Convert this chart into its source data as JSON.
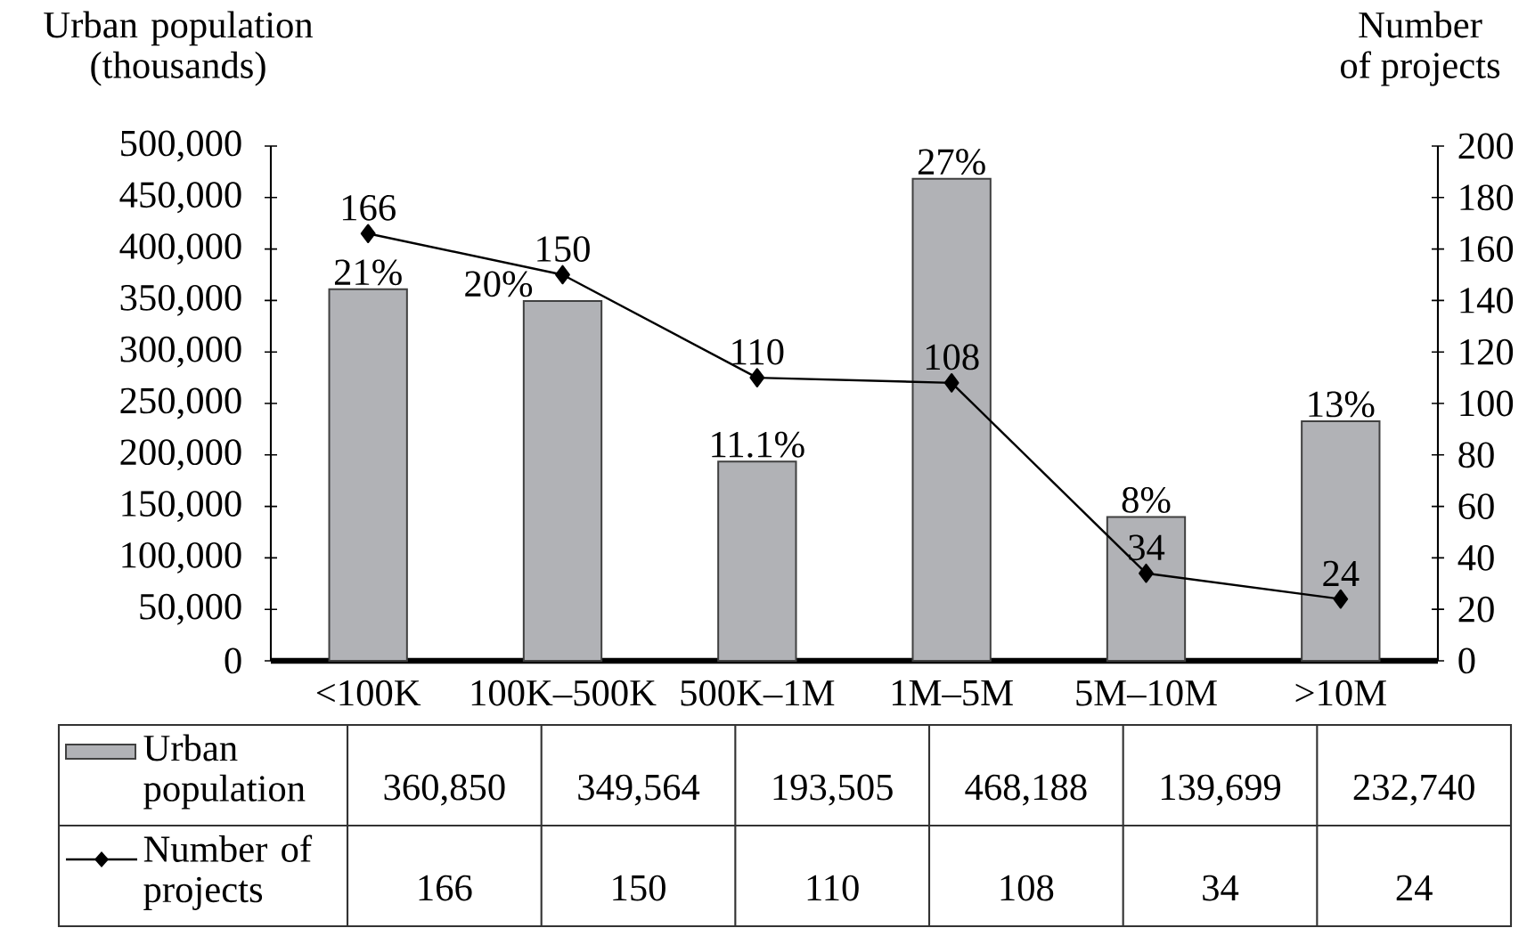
{
  "chart_data": {
    "type": "bar",
    "ylabel": "Urban population (thousands)",
    "y2label": "Number of projects",
    "categories": [
      "<100K",
      "100K–500K",
      "500K–1M",
      "1M–5M",
      "5M–10M",
      ">10M"
    ],
    "series": [
      {
        "name": "Urban population",
        "color": "#b1b2b6",
        "values": [
          360850,
          349564,
          193505,
          468188,
          139699,
          232740
        ],
        "value_labels": [
          "360,850",
          "349,564",
          "193,505",
          "468,188",
          "139,699",
          "232,740"
        ]
      },
      {
        "name": "Number of projects",
        "type": "line",
        "axis": "y2",
        "color": "#000000",
        "marker": "diamond",
        "data_labels": true,
        "values": [
          166,
          150,
          110,
          108,
          34,
          24
        ],
        "value_labels": [
          "166",
          "150",
          "110",
          "108",
          "34",
          "24"
        ]
      }
    ],
    "annotations": [
      {
        "text": "21%",
        "x": "<100K",
        "y": 360850
      },
      {
        "text": "20%",
        "x": "100K–500K",
        "y": 349564
      },
      {
        "text": "11.1%",
        "x": "500K–1M",
        "y": 193505
      },
      {
        "text": "27%",
        "x": "1M–5M",
        "y": 468188
      },
      {
        "text": "8%",
        "x": "5M–10M",
        "y": 139699
      },
      {
        "text": "13%",
        "x": ">10M",
        "y": 232740
      }
    ],
    "ylim": [
      0,
      500000
    ],
    "yticks": [
      0,
      {
        "value": 50000,
        "label": "50,000"
      },
      {
        "value": 100000,
        "label": "100,000"
      },
      {
        "value": 150000,
        "label": "150,000"
      },
      {
        "value": 200000,
        "label": "200,000"
      },
      {
        "value": 250000,
        "label": "250,000"
      },
      {
        "value": 300000,
        "label": "300,000"
      },
      {
        "value": 350000,
        "label": "350,000"
      },
      {
        "value": 400000,
        "label": "400,000"
      },
      {
        "value": 450000,
        "label": "450,000"
      },
      {
        "value": 500000,
        "label": "500,000"
      }
    ],
    "y2lim": [
      0,
      200
    ],
    "y2ticks": [
      0,
      20,
      40,
      60,
      80,
      100,
      120,
      140,
      160,
      180,
      200
    ],
    "data_labels": true,
    "legend": "bottom"
  }
}
